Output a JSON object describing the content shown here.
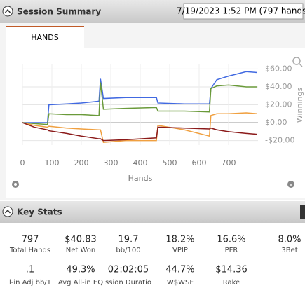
{
  "header": {
    "title": "Session Summary",
    "session": "7/19/2023 1:52 PM (797 hands)"
  },
  "tabs": [
    "HANDS"
  ],
  "chart_data": {
    "type": "line",
    "x_label": "Hands",
    "y_label": "Winnings",
    "x": [
      0,
      40,
      85,
      90,
      150,
      200,
      260,
      265,
      275,
      350,
      455,
      460,
      550,
      635,
      640,
      660,
      700,
      760,
      797
    ],
    "series": [
      {
        "color": "#4169e1",
        "values": [
          0,
          0,
          0,
          20,
          21,
          22,
          24,
          49,
          27,
          28,
          28,
          22,
          21,
          21,
          38,
          48,
          52,
          57,
          56
        ]
      },
      {
        "color": "#6a9a3a",
        "values": [
          0,
          -1,
          -2,
          10,
          9,
          9,
          8,
          45,
          15,
          16,
          17,
          13,
          13,
          12,
          38,
          41,
          42,
          40,
          40
        ]
      },
      {
        "color": "#f0a040",
        "values": [
          0,
          -3,
          -5,
          -4,
          -6,
          -7,
          -8,
          -8,
          -22,
          -20,
          -20,
          -3,
          -8,
          -15,
          8,
          10,
          10,
          11,
          10
        ]
      },
      {
        "color": "#8b1a1a",
        "values": [
          0,
          -5,
          -8,
          -9,
          -12,
          -15,
          -18,
          -18,
          -20,
          -19,
          -17,
          -5,
          -6,
          -7,
          -6,
          -8,
          -10,
          -12,
          -13
        ]
      }
    ],
    "xlim": [
      0,
      800
    ],
    "xticks": [
      0,
      100,
      200,
      300,
      400,
      500,
      600,
      700
    ],
    "ylim": [
      -25,
      65
    ],
    "yticks": [
      {
        "value": 60,
        "label": "$60.00"
      },
      {
        "value": 40,
        "label": "$40.00"
      },
      {
        "value": 20,
        "label": "$20.00"
      },
      {
        "value": 0,
        "label": "$0.00"
      },
      {
        "value": -20,
        "label": "-$20.00"
      }
    ],
    "grid": true
  },
  "key_stats": {
    "title": "Key Stats",
    "stats": [
      {
        "value": "797",
        "label": "Total Hands"
      },
      {
        "value": "$40.83",
        "label": "Net Won"
      },
      {
        "value": "19.7",
        "label": "bb/100"
      },
      {
        "value": "18.2%",
        "label": "VPIP"
      },
      {
        "value": "16.6%",
        "label": "PFR"
      },
      {
        "value": "8.0%",
        "label": "3Bet"
      },
      {
        "value": ".1",
        "label": "l-in Adj bb/1"
      },
      {
        "value": "49.3%",
        "label": "Avg All-in EQ"
      },
      {
        "value": "02:02:05",
        "label": "ssion Duratio"
      },
      {
        "value": "44.7%",
        "label": "W$WSF"
      },
      {
        "value": "$14.36",
        "label": "Rake"
      }
    ]
  }
}
